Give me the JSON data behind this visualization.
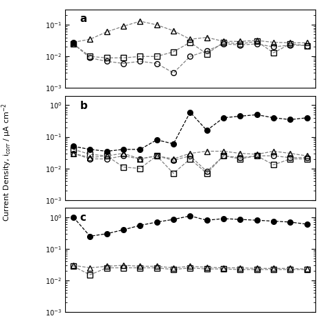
{
  "panels": [
    "a",
    "b",
    "c"
  ],
  "background": "#ffffff",
  "ylabel": "Current Density, i$_{corr}$ / μA cm$^{-2}$",
  "panel_a": {
    "ylim": [
      0.001,
      0.3
    ],
    "yticks": [
      0.001,
      0.01,
      0.1
    ],
    "filled_circle": [
      0.028,
      null,
      null,
      null,
      null,
      null,
      null,
      null,
      null,
      null,
      null,
      null,
      null,
      null,
      null
    ],
    "triangle": [
      0.028,
      0.035,
      0.06,
      0.09,
      0.13,
      0.1,
      0.065,
      0.035,
      0.04,
      0.03,
      0.03,
      0.032,
      0.028,
      0.027,
      0.027
    ],
    "square": [
      0.025,
      0.01,
      0.009,
      0.009,
      0.01,
      0.01,
      0.014,
      0.028,
      0.012,
      0.028,
      0.025,
      0.03,
      0.013,
      0.025,
      0.022
    ],
    "circle": [
      0.025,
      0.009,
      0.007,
      0.006,
      0.007,
      0.006,
      0.003,
      0.01,
      0.015,
      0.025,
      0.023,
      0.025,
      0.02,
      0.023,
      0.022
    ],
    "x": [
      0,
      1,
      2,
      3,
      4,
      5,
      6,
      7,
      8,
      9,
      10,
      11,
      12,
      13,
      14
    ]
  },
  "panel_b": {
    "ylim": [
      0.001,
      2.0
    ],
    "yticks": [
      0.001,
      0.01,
      0.1,
      1.0
    ],
    "filled_circle": [
      0.05,
      0.04,
      0.035,
      0.04,
      0.04,
      0.08,
      0.06,
      0.6,
      0.16,
      0.4,
      0.45,
      0.5,
      0.4,
      0.35,
      0.4
    ],
    "triangle": [
      0.03,
      0.022,
      0.025,
      0.03,
      0.02,
      0.025,
      0.02,
      0.03,
      0.035,
      0.035,
      0.03,
      0.028,
      0.035,
      0.03,
      0.025
    ],
    "square": [
      0.04,
      0.028,
      0.025,
      0.011,
      0.01,
      0.025,
      0.007,
      0.02,
      0.007,
      0.025,
      0.02,
      0.025,
      0.013,
      0.02,
      0.02
    ],
    "circle": [
      0.03,
      0.02,
      0.02,
      0.025,
      0.02,
      0.025,
      0.018,
      0.025,
      0.008,
      0.025,
      0.022,
      0.025,
      0.025,
      0.022,
      0.022
    ],
    "x": [
      0,
      1,
      2,
      3,
      4,
      5,
      6,
      7,
      8,
      9,
      10,
      11,
      12,
      13,
      14
    ]
  },
  "panel_c": {
    "ylim": [
      0.001,
      2.0
    ],
    "yticks": [
      0.001,
      0.01,
      0.1,
      1.0
    ],
    "filled_circle": [
      1.0,
      0.25,
      0.3,
      0.4,
      0.55,
      0.7,
      0.85,
      1.1,
      0.8,
      0.9,
      0.85,
      0.8,
      0.75,
      0.7,
      0.6
    ],
    "triangle": [
      0.03,
      0.025,
      0.028,
      0.03,
      0.028,
      0.028,
      0.025,
      0.028,
      0.026,
      0.025,
      0.025,
      0.024,
      0.024,
      0.024,
      0.023
    ],
    "square": [
      0.028,
      0.015,
      0.025,
      0.025,
      0.025,
      0.025,
      0.022,
      0.025,
      0.023,
      0.023,
      0.022,
      0.022,
      0.022,
      0.022,
      0.022
    ],
    "circle": [
      null,
      null,
      null,
      null,
      null,
      null,
      null,
      null,
      null,
      null,
      null,
      null,
      null,
      null,
      null
    ],
    "x": [
      0,
      1,
      2,
      3,
      4,
      5,
      6,
      7,
      8,
      9,
      10,
      11,
      12,
      13,
      14
    ]
  }
}
